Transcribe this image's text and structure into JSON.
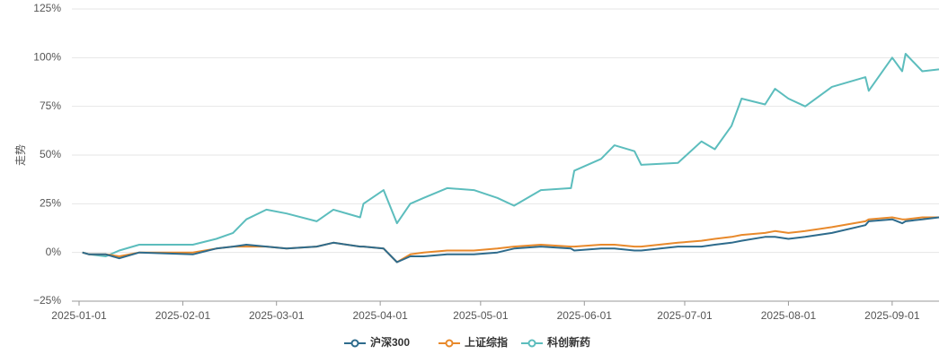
{
  "chart_data": {
    "type": "line",
    "y_label": "走势",
    "x": [
      "2025-01-02",
      "2025-01-04",
      "2025-01-09",
      "2025-01-13",
      "2025-01-19",
      "2025-02-04",
      "2025-02-11",
      "2025-02-16",
      "2025-02-20",
      "2025-02-26",
      "2025-03-04",
      "2025-03-13",
      "2025-03-18",
      "2025-03-26",
      "2025-03-27",
      "2025-04-02",
      "2025-04-06",
      "2025-04-10",
      "2025-04-14",
      "2025-04-21",
      "2025-04-29",
      "2025-05-06",
      "2025-05-11",
      "2025-05-19",
      "2025-05-28",
      "2025-05-29",
      "2025-06-06",
      "2025-06-10",
      "2025-06-16",
      "2025-06-18",
      "2025-06-29",
      "2025-07-06",
      "2025-07-10",
      "2025-07-15",
      "2025-07-18",
      "2025-07-25",
      "2025-07-28",
      "2025-08-01",
      "2025-08-06",
      "2025-08-14",
      "2025-08-24",
      "2025-08-25",
      "2025-09-01",
      "2025-09-04",
      "2025-09-05",
      "2025-09-10",
      "2025-09-15"
    ],
    "series": [
      {
        "name": "沪深300",
        "color": "#2e6b8c",
        "values": [
          0,
          -1,
          -1,
          -3,
          0,
          -1,
          2,
          3,
          4,
          3,
          2,
          3,
          5,
          3,
          3,
          2,
          -5,
          -2,
          -2,
          -1,
          -1,
          0,
          2,
          3,
          2,
          1,
          2,
          2,
          1,
          1,
          3,
          3,
          4,
          5,
          6,
          8,
          8,
          7,
          8,
          10,
          14,
          16,
          17,
          15,
          16,
          17,
          18
        ]
      },
      {
        "name": "上证综指",
        "color": "#e8892b",
        "values": [
          0,
          -1,
          -1,
          -2,
          0,
          0,
          2,
          3,
          3,
          3,
          2,
          3,
          5,
          3,
          3,
          2,
          -5,
          -1,
          0,
          1,
          1,
          2,
          3,
          4,
          3,
          3,
          4,
          4,
          3,
          3,
          5,
          6,
          7,
          8,
          9,
          10,
          11,
          10,
          11,
          13,
          16,
          17,
          18,
          17,
          17,
          18,
          18
        ]
      },
      {
        "name": "科创新药",
        "color": "#5cbdbd",
        "values": [
          0,
          -1,
          -2,
          1,
          4,
          4,
          7,
          10,
          17,
          22,
          20,
          16,
          22,
          18,
          25,
          32,
          15,
          25,
          28,
          33,
          32,
          28,
          24,
          32,
          33,
          42,
          48,
          55,
          52,
          45,
          46,
          57,
          53,
          65,
          79,
          76,
          84,
          79,
          75,
          85,
          90,
          83,
          100,
          93,
          102,
          93,
          94
        ]
      }
    ],
    "xlim": [
      "2025-01-01",
      "2025-09-15"
    ],
    "xticks": [
      "2025-01-01",
      "2025-02-01",
      "2025-03-01",
      "2025-04-01",
      "2025-05-01",
      "2025-06-01",
      "2025-07-01",
      "2025-08-01",
      "2025-09-01"
    ],
    "ylim": [
      -25,
      125
    ],
    "yticks": [
      {
        "value": -25,
        "label": "−25%"
      },
      {
        "value": 0,
        "label": "0%"
      },
      {
        "value": 25,
        "label": "25%"
      },
      {
        "value": 50,
        "label": "50%"
      },
      {
        "value": 75,
        "label": "75%"
      },
      {
        "value": 100,
        "label": "100%"
      },
      {
        "value": 125,
        "label": "125%"
      }
    ],
    "grid": true,
    "legend": "bottom"
  }
}
